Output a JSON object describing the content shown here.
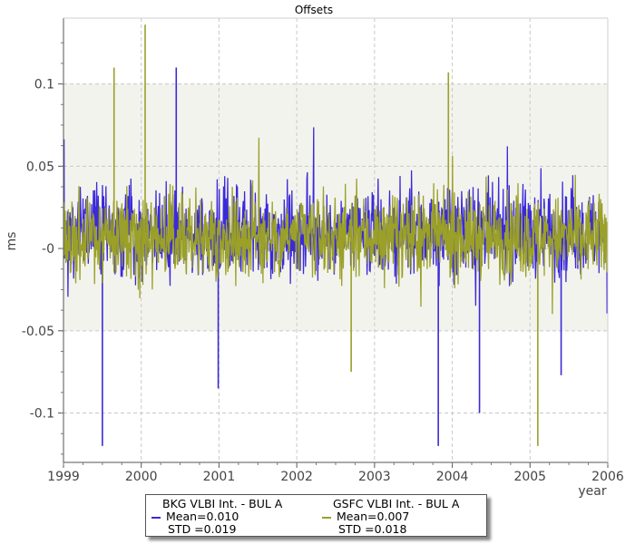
{
  "chart_data": {
    "type": "line",
    "title": "Offsets",
    "xlabel": "year",
    "ylabel": "ms",
    "xlim": [
      1999,
      2006
    ],
    "ylim": [
      -0.13,
      0.14
    ],
    "x_ticks": [
      "1999",
      "2000",
      "2001",
      "2002",
      "2003",
      "2004",
      "2005",
      "2006"
    ],
    "y_ticks": [
      "0.1",
      "0.05",
      "-0",
      "-0.05",
      "-0.1"
    ],
    "std_band": [
      -0.05,
      0.1
    ],
    "grid": true,
    "legend_position": "bottom",
    "colors": {
      "bkg": "#3b2ad8",
      "gsfc": "#9aa028",
      "band": "#f3f3ee",
      "grid": "#c8c8c8"
    },
    "series": [
      {
        "name": "BKG VLBI Int. - BUL A",
        "mean_label": "Mean=0.010",
        "std_label": "STD =0.019",
        "color": "#3b2ad8",
        "extremes": [
          {
            "x": 1999.5,
            "y": -0.12
          },
          {
            "x": 2000.45,
            "y": 0.11
          },
          {
            "x": 2000.99,
            "y": -0.085
          },
          {
            "x": 2003.82,
            "y": -0.12
          },
          {
            "x": 2004.35,
            "y": -0.1
          },
          {
            "x": 2005.4,
            "y": -0.077
          }
        ]
      },
      {
        "name": "GSFC VLBI Int. - BUL A",
        "mean_label": "Mean=0.007",
        "std_label": "STD =0.018",
        "color": "#9aa028",
        "extremes": [
          {
            "x": 2000.05,
            "y": 0.136
          },
          {
            "x": 1999.65,
            "y": 0.11
          },
          {
            "x": 2003.95,
            "y": 0.107
          },
          {
            "x": 2005.1,
            "y": -0.12
          },
          {
            "x": 2002.7,
            "y": -0.075
          }
        ]
      }
    ]
  }
}
